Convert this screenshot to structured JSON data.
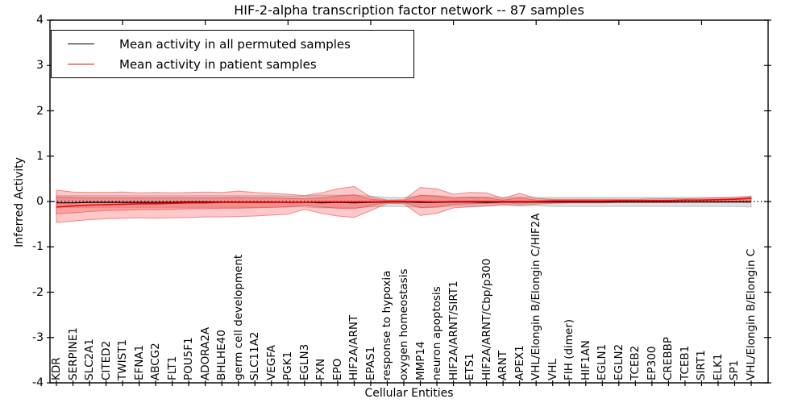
{
  "title": "HIF-2-alpha transcription factor network -- 87 samples",
  "axes": {
    "ylabel": "Inferred Activity",
    "xlabel": "Cellular Entities",
    "yticks": [
      "4",
      "3",
      "2",
      "1",
      "0",
      "-1",
      "-2",
      "-3",
      "-4"
    ],
    "ylim": [
      -4,
      4
    ]
  },
  "legend": {
    "items": [
      {
        "label": "Mean activity in all permuted samples",
        "color": "#000000"
      },
      {
        "label": "Mean activity in patient samples",
        "color": "#ff0000"
      }
    ]
  },
  "colors": {
    "patient_line": "#ff0000",
    "permuted_line": "#000000",
    "patient_band_fill": "rgba(255,55,55,0.27)",
    "patient_band_edge": "rgba(225,60,60,0.55)",
    "permuted_band_fill": "rgba(120,120,120,0.22)",
    "permuted_band_edge": "rgba(110,110,110,0.35)"
  },
  "chart_data": {
    "type": "line",
    "title": "HIF-2-alpha transcription factor network -- 87 samples",
    "xlabel": "Cellular Entities",
    "ylabel": "Inferred Activity",
    "ylim": [
      -4,
      4
    ],
    "grid": false,
    "zero_line_dotted": true,
    "legend_position": "upper left",
    "categories": [
      "KDR",
      "SERPINE1",
      "SLC2A1",
      "CITED2",
      "TWIST1",
      "EFNA1",
      "ABCG2",
      "FLT1",
      "POU5F1",
      "ADORA2A",
      "BHLHE40",
      "germ cell development",
      "SLC11A2",
      "VEGFA",
      "PGK1",
      "EGLN3",
      "FXN",
      "EPO",
      "HIF2A/ARNT",
      "EPAS1",
      "response to hypoxia",
      "oxygen homeostasis",
      "MMP14",
      "neuron apoptosis",
      "HIF2A/ARNT/SIRT1",
      "ETS1",
      "HIF2A/ARNT/Cbp/p300",
      "ARNT",
      "APEX1",
      "VHL/Elongin B/Elongin C/HIF2A",
      "VHL",
      "FIH (dimer)",
      "HIF1AN",
      "EGLN1",
      "EGLN2",
      "TCEB2",
      "EP300",
      "CREBBP",
      "TCEB1",
      "SIRT1",
      "ELK1",
      "SP1",
      "VHL/Elongin B/Elongin C"
    ],
    "series": [
      {
        "name": "Mean activity in all permuted samples",
        "color": "#000000",
        "values": [
          -0.03,
          -0.03,
          -0.02,
          -0.02,
          -0.02,
          -0.02,
          -0.02,
          -0.02,
          -0.01,
          -0.01,
          -0.01,
          -0.01,
          -0.01,
          -0.01,
          -0.02,
          -0.02,
          -0.03,
          -0.02,
          -0.03,
          -0.02,
          -0.01,
          -0.01,
          -0.02,
          -0.02,
          -0.01,
          -0.01,
          -0.02,
          -0.01,
          -0.01,
          -0.01,
          -0.01,
          -0.01,
          -0.01,
          -0.01,
          -0.01,
          -0.01,
          -0.01,
          -0.01,
          -0.01,
          -0.01,
          -0.01,
          -0.01,
          -0.01
        ]
      },
      {
        "name": "Mean activity in patient samples",
        "color": "#ff0000",
        "values": [
          -0.12,
          -0.1,
          -0.08,
          -0.07,
          -0.06,
          -0.05,
          -0.05,
          -0.04,
          -0.03,
          -0.03,
          -0.02,
          -0.02,
          -0.02,
          -0.02,
          -0.02,
          -0.02,
          -0.01,
          -0.01,
          -0.01,
          -0.01,
          0.0,
          0.0,
          0.0,
          -0.01,
          0.0,
          0.0,
          0.0,
          0.0,
          0.0,
          0.0,
          0.01,
          0.01,
          0.01,
          0.01,
          0.02,
          0.02,
          0.02,
          0.02,
          0.03,
          0.03,
          0.04,
          0.05,
          0.07
        ]
      }
    ],
    "bands": [
      {
        "name": "permuted-sample-range",
        "color_key": "permuted_band_fill",
        "edge_key": "permuted_band_edge",
        "upper": [
          0.13,
          0.13,
          0.13,
          0.13,
          0.13,
          0.13,
          0.13,
          0.13,
          0.13,
          0.13,
          0.13,
          0.13,
          0.13,
          0.13,
          0.12,
          0.12,
          0.14,
          0.14,
          0.14,
          0.12,
          0.09,
          0.09,
          0.13,
          0.13,
          0.1,
          0.1,
          0.1,
          0.09,
          0.1,
          0.09,
          0.09,
          0.09,
          0.09,
          0.09,
          0.09,
          0.09,
          0.09,
          0.09,
          0.09,
          0.09,
          0.09,
          0.09,
          0.1
        ],
        "lower": [
          -0.13,
          -0.13,
          -0.13,
          -0.13,
          -0.13,
          -0.13,
          -0.13,
          -0.13,
          -0.13,
          -0.13,
          -0.13,
          -0.13,
          -0.13,
          -0.13,
          -0.12,
          -0.12,
          -0.14,
          -0.14,
          -0.14,
          -0.12,
          -0.11,
          -0.11,
          -0.13,
          -0.13,
          -0.1,
          -0.1,
          -0.1,
          -0.09,
          -0.1,
          -0.09,
          -0.11,
          -0.11,
          -0.11,
          -0.11,
          -0.11,
          -0.11,
          -0.11,
          -0.11,
          -0.11,
          -0.11,
          -0.11,
          -0.11,
          -0.12
        ]
      },
      {
        "name": "patient-sample-outer-range",
        "color_key": "patient_band_fill",
        "edge_key": "patient_band_edge",
        "upper": [
          0.25,
          0.21,
          0.2,
          0.2,
          0.21,
          0.19,
          0.2,
          0.19,
          0.2,
          0.21,
          0.2,
          0.23,
          0.2,
          0.18,
          0.16,
          0.13,
          0.19,
          0.28,
          0.33,
          0.1,
          0.03,
          0.04,
          0.31,
          0.28,
          0.16,
          0.2,
          0.19,
          0.07,
          0.18,
          0.07,
          0.05,
          0.05,
          0.05,
          0.05,
          0.05,
          0.05,
          0.06,
          0.06,
          0.06,
          0.07,
          0.08,
          0.09,
          0.12
        ],
        "lower": [
          -0.46,
          -0.43,
          -0.4,
          -0.38,
          -0.37,
          -0.36,
          -0.37,
          -0.36,
          -0.35,
          -0.34,
          -0.34,
          -0.33,
          -0.32,
          -0.3,
          -0.28,
          -0.17,
          -0.26,
          -0.32,
          -0.35,
          -0.2,
          -0.04,
          -0.05,
          -0.31,
          -0.26,
          -0.14,
          -0.12,
          -0.1,
          -0.06,
          -0.08,
          -0.06,
          -0.04,
          -0.03,
          -0.03,
          -0.03,
          -0.02,
          -0.02,
          -0.02,
          -0.02,
          -0.01,
          -0.01,
          -0.01,
          0.0,
          0.01
        ]
      },
      {
        "name": "patient-sample-inner-band",
        "color_key": "patient_band_fill",
        "edge_key": "patient_band_edge",
        "upper": [
          0.1,
          0.09,
          0.08,
          0.08,
          0.08,
          0.08,
          0.08,
          0.08,
          0.08,
          0.08,
          0.08,
          0.09,
          0.08,
          0.08,
          0.07,
          0.06,
          0.08,
          0.12,
          0.15,
          0.05,
          0.02,
          0.02,
          0.14,
          0.12,
          0.07,
          0.09,
          0.08,
          0.03,
          0.08,
          0.03,
          0.03,
          0.03,
          0.03,
          0.03,
          0.03,
          0.03,
          0.03,
          0.03,
          0.04,
          0.04,
          0.05,
          0.06,
          0.08
        ],
        "lower": [
          -0.27,
          -0.25,
          -0.22,
          -0.2,
          -0.19,
          -0.18,
          -0.18,
          -0.17,
          -0.16,
          -0.16,
          -0.15,
          -0.15,
          -0.14,
          -0.13,
          -0.12,
          -0.08,
          -0.12,
          -0.15,
          -0.16,
          -0.09,
          -0.02,
          -0.02,
          -0.14,
          -0.12,
          -0.06,
          -0.05,
          -0.04,
          -0.03,
          -0.04,
          -0.03,
          -0.02,
          -0.02,
          -0.02,
          -0.02,
          -0.01,
          -0.01,
          -0.01,
          -0.01,
          -0.01,
          0.0,
          0.0,
          0.01,
          0.02
        ]
      }
    ]
  }
}
